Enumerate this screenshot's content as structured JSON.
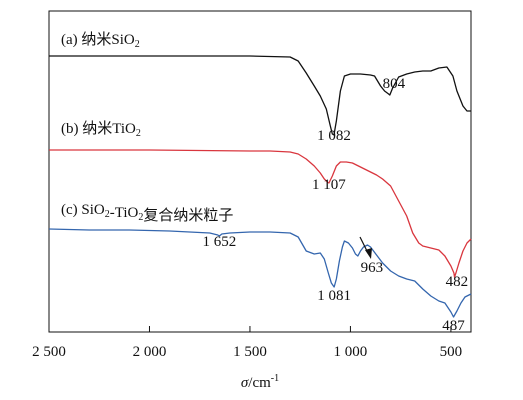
{
  "chart_data": {
    "type": "line",
    "title": "",
    "xlabel_symbol": "σ",
    "xlabel_unit": "/cm",
    "xlabel_unit_exp": "-1",
    "ylabel": "",
    "xlim": [
      2500,
      400
    ],
    "x_reversed": true,
    "grid": false,
    "y_ticks_shown": false,
    "x_ticks": [
      {
        "value": 2500,
        "label": "2 500"
      },
      {
        "value": 2000,
        "label": "2 000"
      },
      {
        "value": 1500,
        "label": "1 500"
      },
      {
        "value": 1000,
        "label": "1 000"
      },
      {
        "value": 500,
        "label": "500"
      }
    ],
    "series": [
      {
        "name": "(a) 纳米SiO2",
        "color": "#111111",
        "label_parts": [
          {
            "t": "(a) 纳米SiO",
            "sub": false
          },
          {
            "t": "2",
            "sub": true
          }
        ],
        "points": [
          [
            2500,
            45
          ],
          [
            2000,
            45
          ],
          [
            1500,
            45
          ],
          [
            1300,
            46
          ],
          [
            1260,
            50
          ],
          [
            1220,
            62
          ],
          [
            1180,
            75
          ],
          [
            1150,
            85
          ],
          [
            1120,
            98
          ],
          [
            1100,
            115
          ],
          [
            1090,
            123
          ],
          [
            1082,
            124
          ],
          [
            1070,
            110
          ],
          [
            1050,
            80
          ],
          [
            1030,
            65
          ],
          [
            1000,
            63
          ],
          [
            950,
            63
          ],
          [
            900,
            64
          ],
          [
            880,
            65
          ],
          [
            850,
            75
          ],
          [
            830,
            80
          ],
          [
            810,
            83
          ],
          [
            804,
            84
          ],
          [
            790,
            77
          ],
          [
            760,
            66
          ],
          [
            720,
            63
          ],
          [
            680,
            61
          ],
          [
            640,
            60
          ],
          [
            600,
            60
          ],
          [
            560,
            57
          ],
          [
            520,
            56
          ],
          [
            490,
            65
          ],
          [
            470,
            80
          ],
          [
            440,
            95
          ],
          [
            420,
            100
          ],
          [
            400,
            100
          ]
        ],
        "peaks": [
          {
            "x": 1082,
            "label": "1 082"
          },
          {
            "x": 804,
            "label": "804"
          }
        ]
      },
      {
        "name": "(b) 纳米TiO2",
        "color": "#d9363e",
        "label_parts": [
          {
            "t": "(b) 纳米TiO",
            "sub": false
          },
          {
            "t": "2",
            "sub": true
          }
        ],
        "points": [
          [
            2500,
            139
          ],
          [
            2000,
            139
          ],
          [
            1500,
            140
          ],
          [
            1400,
            140
          ],
          [
            1300,
            141
          ],
          [
            1260,
            143
          ],
          [
            1220,
            148
          ],
          [
            1180,
            155
          ],
          [
            1150,
            162
          ],
          [
            1130,
            168
          ],
          [
            1115,
            171
          ],
          [
            1107,
            172
          ],
          [
            1090,
            165
          ],
          [
            1070,
            155
          ],
          [
            1050,
            151
          ],
          [
            1020,
            151
          ],
          [
            990,
            152
          ],
          [
            960,
            155
          ],
          [
            930,
            158
          ],
          [
            900,
            161
          ],
          [
            870,
            164
          ],
          [
            840,
            168
          ],
          [
            800,
            175
          ],
          [
            760,
            190
          ],
          [
            720,
            205
          ],
          [
            690,
            222
          ],
          [
            660,
            232
          ],
          [
            640,
            235
          ],
          [
            600,
            237
          ],
          [
            560,
            239
          ],
          [
            530,
            245
          ],
          [
            500,
            255
          ],
          [
            485,
            262
          ],
          [
            482,
            266
          ],
          [
            475,
            262
          ],
          [
            460,
            252
          ],
          [
            440,
            240
          ],
          [
            420,
            232
          ],
          [
            400,
            228
          ]
        ],
        "peaks": [
          {
            "x": 1107,
            "label": "1 107"
          }
        ]
      },
      {
        "name": "(c) SiO2-TiO2复合纳米粒子",
        "color": "#3466ae",
        "label_parts": [
          {
            "t": "(c) SiO",
            "sub": false
          },
          {
            "t": "2",
            "sub": true
          },
          {
            "t": "-TiO",
            "sub": false
          },
          {
            "t": "2",
            "sub": true
          },
          {
            "t": "复合纳米粒子",
            "sub": false
          }
        ],
        "points": [
          [
            2500,
            218
          ],
          [
            2300,
            219
          ],
          [
            2100,
            219
          ],
          [
            1900,
            220
          ],
          [
            1800,
            221
          ],
          [
            1700,
            222
          ],
          [
            1660,
            224
          ],
          [
            1652,
            225
          ],
          [
            1640,
            223
          ],
          [
            1600,
            222
          ],
          [
            1500,
            221
          ],
          [
            1400,
            221
          ],
          [
            1300,
            222
          ],
          [
            1260,
            226
          ],
          [
            1220,
            240
          ],
          [
            1180,
            243
          ],
          [
            1150,
            242
          ],
          [
            1130,
            248
          ],
          [
            1110,
            262
          ],
          [
            1095,
            272
          ],
          [
            1081,
            276
          ],
          [
            1070,
            268
          ],
          [
            1055,
            250
          ],
          [
            1040,
            236
          ],
          [
            1030,
            230
          ],
          [
            1010,
            232
          ],
          [
            990,
            237
          ],
          [
            975,
            243
          ],
          [
            963,
            245
          ],
          [
            950,
            240
          ],
          [
            935,
            236
          ],
          [
            915,
            234
          ],
          [
            900,
            236
          ],
          [
            870,
            244
          ],
          [
            840,
            252
          ],
          [
            800,
            260
          ],
          [
            760,
            265
          ],
          [
            720,
            268
          ],
          [
            680,
            270
          ],
          [
            640,
            278
          ],
          [
            600,
            285
          ],
          [
            560,
            290
          ],
          [
            530,
            292
          ],
          [
            500,
            301
          ],
          [
            487,
            306
          ],
          [
            470,
            300
          ],
          [
            450,
            292
          ],
          [
            430,
            286
          ],
          [
            400,
            283
          ]
        ],
        "peaks": [
          {
            "x": 1652,
            "label": "1 652"
          },
          {
            "x": 1081,
            "label": "1 081"
          },
          {
            "x": 963,
            "label": "963"
          },
          {
            "x": 487,
            "label": "487"
          }
        ]
      }
    ]
  }
}
